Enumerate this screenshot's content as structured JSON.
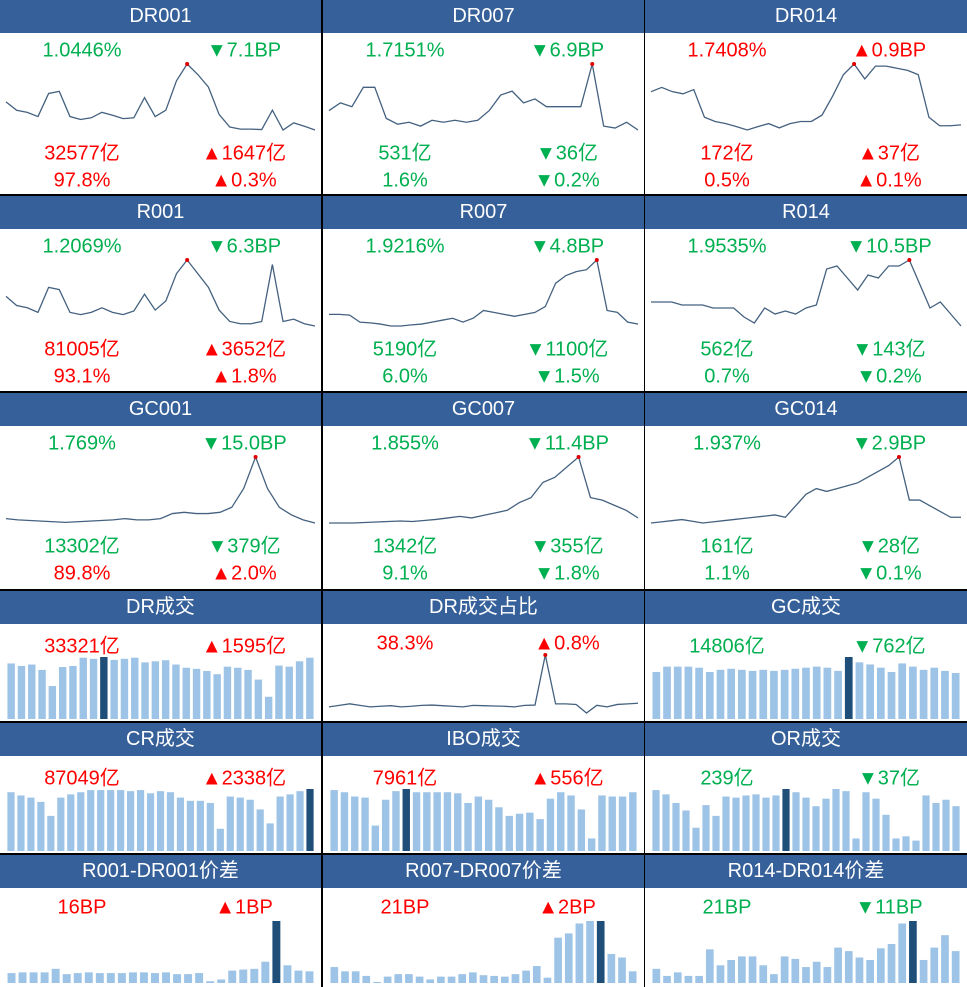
{
  "colors": {
    "header": "#36609a",
    "up": "#ff0000",
    "down": "#00b050",
    "bar": "#9dc3e6",
    "bar_highlight": "#1f4e79",
    "line": "#44617f",
    "peak": "#e00000"
  },
  "panels": [
    {
      "title": "DR001",
      "type": "line",
      "rows": [
        {
          "value": "1.0446%",
          "color": "down",
          "change": "7.1BP",
          "dir": "down"
        },
        {
          "value": "32577亿",
          "color": "up",
          "change": "1647亿",
          "dir": "up"
        },
        {
          "value": "97.8%",
          "color": "up",
          "change": "0.3%",
          "dir": "up"
        }
      ],
      "series": [
        7,
        5,
        4.5,
        3.5,
        9,
        9.5,
        3.5,
        2.8,
        3.2,
        4.5,
        3.8,
        3,
        3.2,
        8,
        3.5,
        5,
        12,
        16,
        13.5,
        10.5,
        4,
        1,
        0.5,
        0.5,
        0.4,
        5,
        0.3,
        2,
        1.2,
        0.3
      ]
    },
    {
      "title": "DR007",
      "type": "line",
      "rows": [
        {
          "value": "1.7151%",
          "color": "down",
          "change": "6.9BP",
          "dir": "down"
        },
        {
          "value": "531亿",
          "color": "down",
          "change": "36亿",
          "dir": "down"
        },
        {
          "value": "1.6%",
          "color": "down",
          "change": "0.2%",
          "dir": "down"
        }
      ],
      "series": [
        5,
        7,
        6,
        11,
        11,
        3,
        1.5,
        2,
        1,
        2.5,
        2,
        2.5,
        2,
        2.5,
        5,
        9,
        10,
        7,
        8,
        6,
        6,
        6,
        6,
        17,
        1,
        0.5,
        2,
        0
      ]
    },
    {
      "title": "DR014",
      "type": "line",
      "rows": [
        {
          "value": "1.7408%",
          "color": "up",
          "change": "0.9BP",
          "dir": "up"
        },
        {
          "value": "172亿",
          "color": "up",
          "change": "37亿",
          "dir": "up"
        },
        {
          "value": "0.5%",
          "color": "up",
          "change": "0.1%",
          "dir": "up"
        }
      ],
      "series": [
        9,
        10,
        9,
        8.5,
        9.5,
        3,
        2,
        1.5,
        0.8,
        0,
        0.8,
        1.5,
        0.5,
        1.5,
        2,
        2,
        3.5,
        8,
        13,
        15.5,
        12,
        15,
        15,
        14.5,
        14,
        13,
        3,
        1,
        1,
        1.2
      ]
    },
    {
      "title": "R001",
      "type": "line",
      "rows": [
        {
          "value": "1.2069%",
          "color": "down",
          "change": "6.3BP",
          "dir": "down"
        },
        {
          "value": "81005亿",
          "color": "up",
          "change": "3652亿",
          "dir": "up"
        },
        {
          "value": "93.1%",
          "color": "up",
          "change": "1.8%",
          "dir": "up"
        }
      ],
      "series": [
        7,
        5,
        4.5,
        3.5,
        9,
        8.5,
        3.5,
        3,
        3.5,
        4.5,
        3.5,
        3,
        3.8,
        7.5,
        4,
        6,
        12,
        15,
        12,
        9,
        4,
        1.5,
        1,
        1,
        1.5,
        14,
        1.5,
        2,
        1,
        0.5
      ]
    },
    {
      "title": "R007",
      "type": "line",
      "rows": [
        {
          "value": "1.9216%",
          "color": "down",
          "change": "4.8BP",
          "dir": "down"
        },
        {
          "value": "5190亿",
          "color": "down",
          "change": "1100亿",
          "dir": "down"
        },
        {
          "value": "6.0%",
          "color": "down",
          "change": "1.5%",
          "dir": "down"
        }
      ],
      "series": [
        3,
        3,
        2.8,
        1,
        0.8,
        0.5,
        0,
        0,
        0.3,
        0.5,
        1,
        1.5,
        2,
        1,
        2,
        4,
        3.5,
        3,
        2.5,
        3,
        3.5,
        5,
        11,
        13,
        14,
        14.5,
        17,
        4,
        3.5,
        1,
        0.5
      ]
    },
    {
      "title": "R014",
      "type": "line",
      "rows": [
        {
          "value": "1.9535%",
          "color": "down",
          "change": "10.5BP",
          "dir": "down"
        },
        {
          "value": "562亿",
          "color": "down",
          "change": "143亿",
          "dir": "down"
        },
        {
          "value": "0.7%",
          "color": "down",
          "change": "0.2%",
          "dir": "down"
        }
      ],
      "series": [
        4,
        4,
        4,
        3.5,
        3.5,
        3.5,
        3,
        3,
        3,
        1.5,
        0.5,
        3,
        2,
        2.5,
        2,
        3,
        3.5,
        9.5,
        10,
        8,
        6,
        8.5,
        8,
        10,
        10,
        11,
        7,
        3,
        4,
        2,
        0
      ]
    },
    {
      "title": "GC001",
      "type": "line",
      "rows": [
        {
          "value": "1.769%",
          "color": "down",
          "change": "15.0BP",
          "dir": "down"
        },
        {
          "value": "13302亿",
          "color": "down",
          "change": "379亿",
          "dir": "down"
        },
        {
          "value": "89.8%",
          "color": "up",
          "change": "2.0%",
          "dir": "up"
        }
      ],
      "series": [
        1.2,
        1,
        0.9,
        0.8,
        0.7,
        0.6,
        0.7,
        0.8,
        0.9,
        1,
        1.2,
        1,
        1,
        1.2,
        2,
        2.2,
        2,
        2,
        2.2,
        3,
        6,
        11,
        6,
        3,
        1.8,
        1,
        0.5
      ]
    },
    {
      "title": "GC007",
      "type": "line",
      "rows": [
        {
          "value": "1.855%",
          "color": "down",
          "change": "11.4BP",
          "dir": "down"
        },
        {
          "value": "1342亿",
          "color": "down",
          "change": "355亿",
          "dir": "down"
        },
        {
          "value": "9.1%",
          "color": "down",
          "change": "1.8%",
          "dir": "down"
        }
      ],
      "series": [
        1,
        1,
        1,
        1.1,
        1.2,
        1.3,
        1.4,
        1.3,
        1.5,
        1.7,
        2,
        2.3,
        2,
        2.5,
        3,
        3.5,
        5,
        6,
        9,
        10,
        12,
        14,
        6,
        5.5,
        4.5,
        3.5,
        2
      ]
    },
    {
      "title": "GC014",
      "type": "line",
      "rows": [
        {
          "value": "1.937%",
          "color": "down",
          "change": "2.9BP",
          "dir": "down"
        },
        {
          "value": "161亿",
          "color": "down",
          "change": "28亿",
          "dir": "down"
        },
        {
          "value": "1.1%",
          "color": "down",
          "change": "0.1%",
          "dir": "down"
        }
      ],
      "series": [
        1,
        1.2,
        1.4,
        1.6,
        1.3,
        1,
        1.2,
        1.4,
        1.6,
        1.8,
        2,
        2.2,
        2.4,
        2,
        4,
        6,
        7,
        6.5,
        7,
        7.5,
        8,
        9,
        10,
        11,
        12.5,
        5,
        5,
        4,
        3,
        2,
        2
      ]
    },
    {
      "title": "DR成交",
      "type": "bar",
      "rows": [
        {
          "value": "33321亿",
          "color": "up",
          "change": "1595亿",
          "dir": "up"
        }
      ],
      "highlight": 9,
      "series": [
        155,
        148,
        152,
        137,
        92,
        145,
        148,
        171,
        168,
        173,
        165,
        168,
        171,
        158,
        161,
        164,
        152,
        143,
        140,
        134,
        125,
        146,
        143,
        137,
        110,
        62,
        149,
        146,
        161,
        171
      ]
    },
    {
      "title": "DR成交占比",
      "type": "line",
      "rows": [
        {
          "value": "38.3%",
          "color": "up",
          "change": "0.8%",
          "dir": "up"
        }
      ],
      "series": [
        33,
        33.5,
        34,
        33.5,
        33,
        33.2,
        33.4,
        33,
        33.2,
        33.5,
        33.6,
        33.4,
        33.2,
        33,
        33.5,
        33.4,
        33.3,
        33.2,
        33,
        33.5,
        33.6,
        50,
        34,
        34,
        33.8,
        31,
        33.5,
        33,
        33.8,
        34,
        34.2
      ]
    },
    {
      "title": "GC成交",
      "type": "bar",
      "rows": [
        {
          "value": "14806亿",
          "color": "down",
          "change": "762亿",
          "dir": "down"
        }
      ],
      "highlight": 18,
      "series": [
        44,
        49,
        49,
        49,
        48,
        44,
        46,
        47,
        46,
        45,
        46,
        45,
        46,
        47,
        48,
        49,
        48,
        45,
        58,
        53,
        51,
        48,
        44,
        52,
        49,
        46,
        48,
        45,
        43
      ]
    },
    {
      "title": "CR成交",
      "type": "bar",
      "rows": [
        {
          "value": "87049亿",
          "color": "up",
          "change": "2338亿",
          "dir": "up"
        }
      ],
      "highlight": 30,
      "series": [
        164,
        155,
        149,
        137,
        98,
        149,
        158,
        164,
        170,
        170,
        170,
        170,
        167,
        170,
        161,
        167,
        164,
        149,
        140,
        140,
        134,
        62,
        152,
        149,
        143,
        116,
        77,
        152,
        158,
        167,
        173
      ]
    },
    {
      "title": "IBO成交",
      "type": "bar",
      "rows": [
        {
          "value": "7961亿",
          "color": "up",
          "change": "556亿",
          "dir": "up"
        }
      ],
      "highlight": 7,
      "series": [
        170,
        164,
        152,
        149,
        71,
        143,
        167,
        173,
        164,
        164,
        164,
        164,
        161,
        134,
        152,
        143,
        122,
        98,
        104,
        107,
        89,
        146,
        164,
        155,
        116,
        35,
        155,
        152,
        152,
        164
      ]
    },
    {
      "title": "OR成交",
      "type": "bar",
      "rows": [
        {
          "value": "239亿",
          "color": "down",
          "change": "37亿",
          "dir": "down"
        }
      ],
      "highlight": 13,
      "series": [
        170,
        158,
        134,
        113,
        65,
        128,
        98,
        152,
        149,
        155,
        158,
        149,
        155,
        173,
        164,
        149,
        125,
        146,
        173,
        167,
        35,
        164,
        146,
        101,
        35,
        41,
        29,
        155,
        134,
        143,
        125
      ]
    },
    {
      "title": "R001-DR001价差",
      "type": "bar",
      "rows": [
        {
          "value": "16BP",
          "color": "up",
          "change": "1BP",
          "dir": "up"
        }
      ],
      "highlight": 24,
      "series": [
        28,
        30,
        30,
        30,
        40,
        25,
        28,
        30,
        28,
        28,
        28,
        30,
        30,
        28,
        30,
        25,
        25,
        28,
        5,
        10,
        35,
        38,
        40,
        60,
        175,
        50,
        35,
        33
      ]
    },
    {
      "title": "R007-DR007价差",
      "type": "bar",
      "rows": [
        {
          "value": "21BP",
          "color": "up",
          "change": "2BP",
          "dir": "up"
        }
      ],
      "highlight": 25,
      "series": [
        45,
        33,
        33,
        20,
        3,
        18,
        25,
        25,
        18,
        10,
        18,
        18,
        25,
        30,
        22,
        20,
        18,
        25,
        35,
        48,
        15,
        128,
        140,
        168,
        175,
        175,
        82,
        72,
        33
      ]
    },
    {
      "title": "R014-DR014价差",
      "type": "bar",
      "rows": [
        {
          "value": "21BP",
          "color": "down",
          "change": "11BP",
          "dir": "down"
        }
      ],
      "highlight": 24,
      "series": [
        40,
        20,
        30,
        20,
        20,
        95,
        50,
        65,
        75,
        75,
        50,
        25,
        75,
        68,
        45,
        60,
        45,
        100,
        90,
        72,
        65,
        98,
        110,
        168,
        175,
        65,
        100,
        135,
        90
      ]
    }
  ],
  "arrows": {
    "up": "▲",
    "down": "▼"
  }
}
